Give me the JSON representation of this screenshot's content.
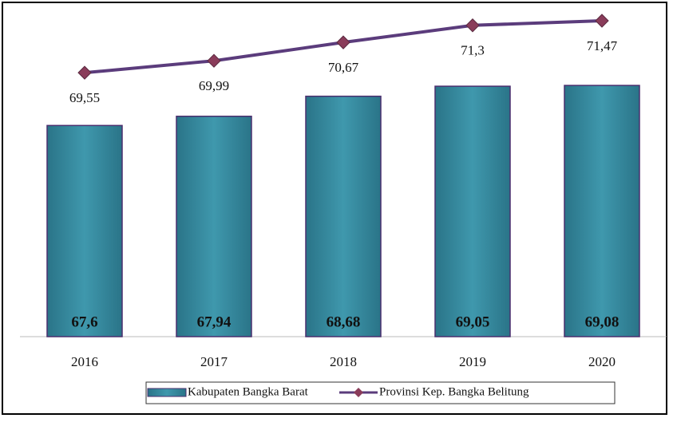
{
  "chart_data": {
    "type": "bar",
    "categories": [
      "2016",
      "2017",
      "2018",
      "2019",
      "2020"
    ],
    "ylim": [
      59.8,
      72
    ],
    "series": [
      {
        "name": "Kabupaten Bangka Barat",
        "type": "bar",
        "color": "#3b8fa3",
        "values": [
          67.6,
          67.94,
          68.68,
          69.05,
          69.08
        ],
        "value_labels": [
          "67,6",
          "67,94",
          "68,68",
          "69,05",
          "69,08"
        ]
      },
      {
        "name": "Provinsi Kep. Bangka Belitung",
        "type": "line",
        "color": "#5b3c7c",
        "marker_color": "#8a3c5a",
        "values": [
          69.55,
          69.99,
          70.67,
          71.3,
          71.47
        ],
        "value_labels": [
          "69,55",
          "69,99",
          "70,67",
          "71,3",
          "71,47"
        ]
      }
    ]
  }
}
